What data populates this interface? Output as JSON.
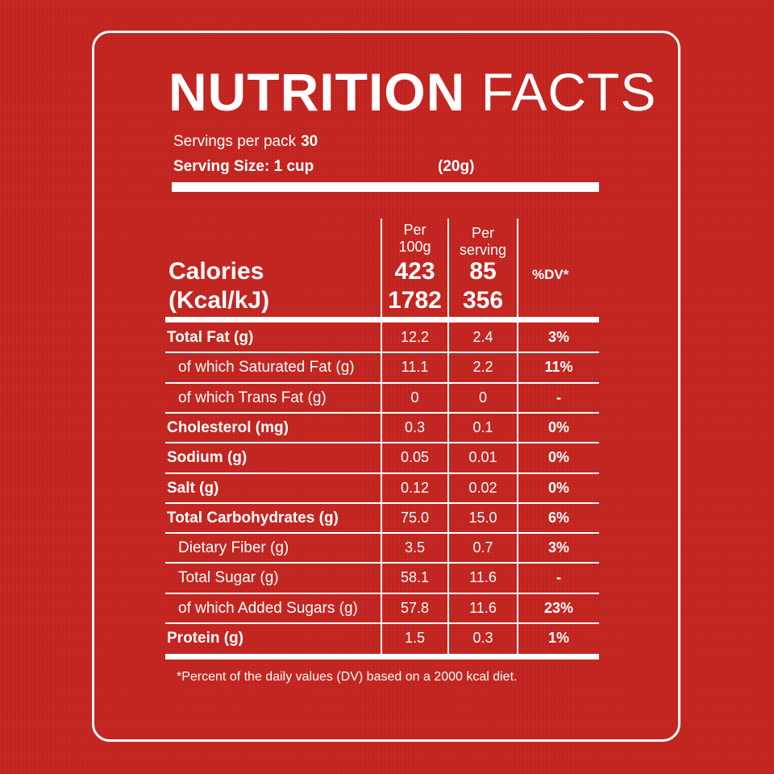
{
  "title": {
    "bold": "NUTRITION",
    "light": "FACTS"
  },
  "servings": {
    "label": "Servings per pack",
    "value": "30"
  },
  "serving_size": {
    "label": "Serving Size: 1 cup",
    "weight": "(20g)"
  },
  "columns": {
    "per100_line1": "Per",
    "per100_line2": "100g",
    "perserv_line1": "Per",
    "perserv_line2": "serving",
    "dv": "%DV*"
  },
  "calories": {
    "label1": "Calories",
    "label2": "(Kcal/kJ)",
    "per100_kcal": "423",
    "per100_kj": "1782",
    "perserv_kcal": "85",
    "perserv_kj": "356"
  },
  "rows": [
    {
      "label": "Total Fat (g)",
      "per100": "12.2",
      "perserv": "2.4",
      "dv": "3%"
    },
    {
      "label": "of which Saturated Fat (g)",
      "per100": "11.1",
      "perserv": "2.2",
      "dv": "11%"
    },
    {
      "label": "of which Trans Fat (g)",
      "per100": "0",
      "perserv": "0",
      "dv": "-"
    },
    {
      "label": "Cholesterol (mg)",
      "per100": "0.3",
      "perserv": "0.1",
      "dv": "0%"
    },
    {
      "label": "Sodium (g)",
      "per100": "0.05",
      "perserv": "0.01",
      "dv": "0%"
    },
    {
      "label": "Salt (g)",
      "per100": "0.12",
      "perserv": "0.02",
      "dv": "0%"
    },
    {
      "label": "Total Carbohydrates (g)",
      "per100": "75.0",
      "perserv": "15.0",
      "dv": "6%"
    },
    {
      "label": "Dietary Fiber (g)",
      "per100": "3.5",
      "perserv": "0.7",
      "dv": "3%"
    },
    {
      "label": "Total Sugar (g)",
      "per100": "58.1",
      "perserv": "11.6",
      "dv": "-"
    },
    {
      "label": "of which Added Sugars (g)",
      "per100": "57.8",
      "perserv": "11.6",
      "dv": "23%"
    },
    {
      "label": "Protein (g)",
      "per100": "1.5",
      "perserv": "0.3",
      "dv": "1%"
    }
  ],
  "footnote": "*Percent of the daily values (DV) based on a 2000 kcal diet.",
  "colors": {
    "background": "#c42520",
    "text": "#ffffff"
  }
}
